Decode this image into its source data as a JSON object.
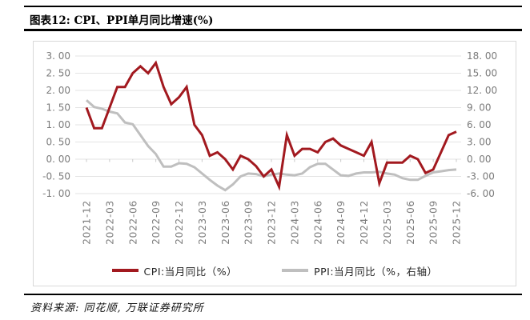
{
  "header": {
    "title": "图表12: CPI、PPI单月同比增速(%)"
  },
  "footer": {
    "source": "资料来源: 同花顺, 万联证券研究所"
  },
  "colors": {
    "cpi_red": "#a2191f",
    "ppi_gray": "#bfbfbf",
    "gridline": "#e3e3e3",
    "zero_axis": "#c9c9c9",
    "axis_text": "#7b7b7b",
    "box_border": "#d9d9d9",
    "divider_black": "#000000"
  },
  "chart_data": {
    "type": "line",
    "title": "CPI、PPI单月同比增速(%)",
    "grid": true,
    "legend_position": "bottom",
    "x": [
      "2021-12",
      "2022-01",
      "2022-02",
      "2022-03",
      "2022-04",
      "2022-05",
      "2022-06",
      "2022-07",
      "2022-08",
      "2022-09",
      "2022-10",
      "2022-11",
      "2022-12",
      "2023-01",
      "2023-02",
      "2023-03",
      "2023-04",
      "2023-05",
      "2023-06",
      "2023-07",
      "2023-08",
      "2023-09",
      "2023-10",
      "2023-11",
      "2023-12",
      "2024-01",
      "2024-02",
      "2024-03",
      "2024-04",
      "2024-05",
      "2024-06",
      "2024-07",
      "2024-08",
      "2024-09",
      "2024-10",
      "2024-11",
      "2024-12",
      "2025-01",
      "2025-02",
      "2025-03",
      "2025-04",
      "2025-05",
      "2025-06",
      "2025-07",
      "2025-08",
      "2025-09",
      "2025-10",
      "2025-11",
      "2025-12"
    ],
    "x_tick_labels": [
      "2021-12",
      "2022-03",
      "2022-06",
      "2022-09",
      "2022-12",
      "2023-03",
      "2023-06",
      "2023-09",
      "2023-12",
      "2024-03",
      "2024-06",
      "2024-09",
      "2024-12",
      "2025-03",
      "2025-06",
      "2025-09",
      "2025-12"
    ],
    "series": [
      {
        "name": "CPI:当月同比（%）",
        "axis": "left",
        "color": "#a2191f",
        "values": [
          1.5,
          0.9,
          0.9,
          1.5,
          2.1,
          2.1,
          2.5,
          2.7,
          2.5,
          2.8,
          2.1,
          1.6,
          1.8,
          2.1,
          1.0,
          0.7,
          0.1,
          0.2,
          0.0,
          -0.3,
          0.1,
          0.0,
          -0.2,
          -0.5,
          -0.3,
          -0.8,
          0.7,
          0.1,
          0.3,
          0.3,
          0.2,
          0.5,
          0.6,
          0.4,
          0.3,
          0.2,
          0.1,
          0.5,
          -0.7,
          -0.1,
          -0.1,
          -0.1,
          0.1,
          0.0,
          -0.4,
          -0.3,
          0.2,
          0.7,
          0.8
        ]
      },
      {
        "name": "PPI:当月同比（%，右轴）",
        "axis": "right",
        "color": "#bfbfbf",
        "values": [
          10.3,
          9.1,
          8.8,
          8.3,
          8.0,
          6.4,
          6.1,
          4.2,
          2.3,
          0.9,
          -1.3,
          -1.3,
          -0.7,
          -0.8,
          -1.4,
          -2.5,
          -3.6,
          -4.6,
          -5.4,
          -4.4,
          -3.0,
          -2.5,
          -2.6,
          -3.0,
          -2.7,
          -2.5,
          -2.7,
          -2.8,
          -2.5,
          -1.4,
          -0.8,
          -0.8,
          -1.8,
          -2.8,
          -2.9,
          -2.5,
          -2.3,
          -2.3,
          -2.2,
          -2.5,
          -2.7,
          -3.3,
          -3.6,
          -3.6,
          -2.9,
          -2.3,
          -2.1,
          -1.9,
          -1.8
        ]
      }
    ],
    "left_axis": {
      "min": -1.0,
      "max": 3.0,
      "step": 0.5,
      "tick_labels": [
        "3. 00",
        "2. 50",
        "2. 00",
        "1. 50",
        "1. 00",
        "0. 50",
        "0. 00",
        "-0. 50",
        "-1. 00"
      ]
    },
    "right_axis": {
      "min": -6.0,
      "max": 18.0,
      "step": 3.0,
      "tick_labels": [
        "18. 00",
        "15. 00",
        "12. 00",
        "9. 00",
        "6. 00",
        "3. 00",
        "0. 00",
        "-3. 00",
        "-6. 00"
      ]
    }
  }
}
